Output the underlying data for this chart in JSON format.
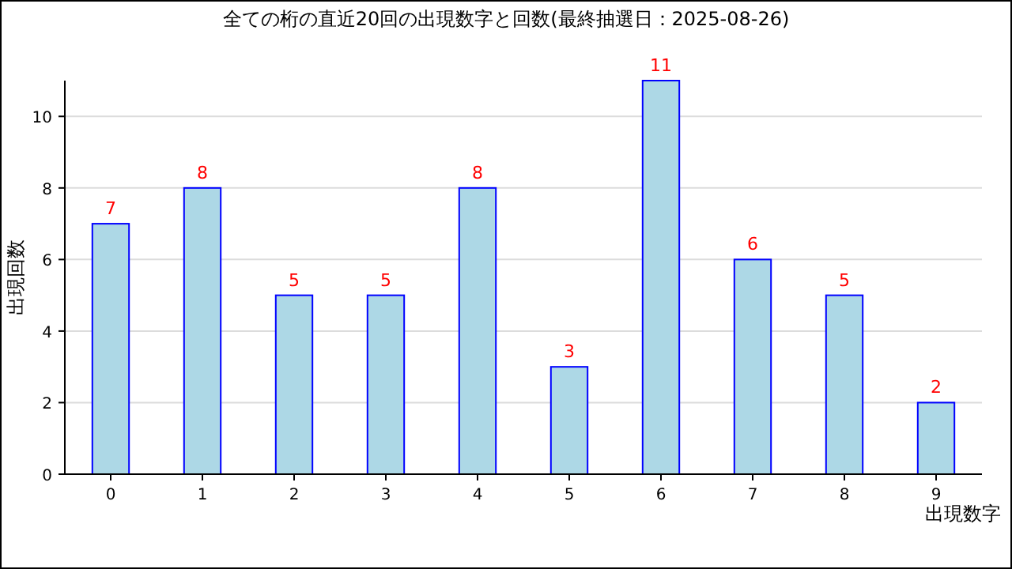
{
  "chart_data": {
    "type": "bar",
    "title": "全ての桁の直近20回の出現数字と回数(最終抽選日：2025-08-26)",
    "xlabel": "出現数字",
    "ylabel": "出現回数",
    "categories": [
      "0",
      "1",
      "2",
      "3",
      "4",
      "5",
      "6",
      "7",
      "8",
      "9"
    ],
    "values": [
      7,
      8,
      5,
      5,
      8,
      3,
      11,
      6,
      5,
      2
    ],
    "color": "#add8e6",
    "ylim": [
      0,
      11
    ],
    "yticks": [
      0,
      2,
      4,
      6,
      8,
      10
    ],
    "grid": "y",
    "data_labels": true
  }
}
